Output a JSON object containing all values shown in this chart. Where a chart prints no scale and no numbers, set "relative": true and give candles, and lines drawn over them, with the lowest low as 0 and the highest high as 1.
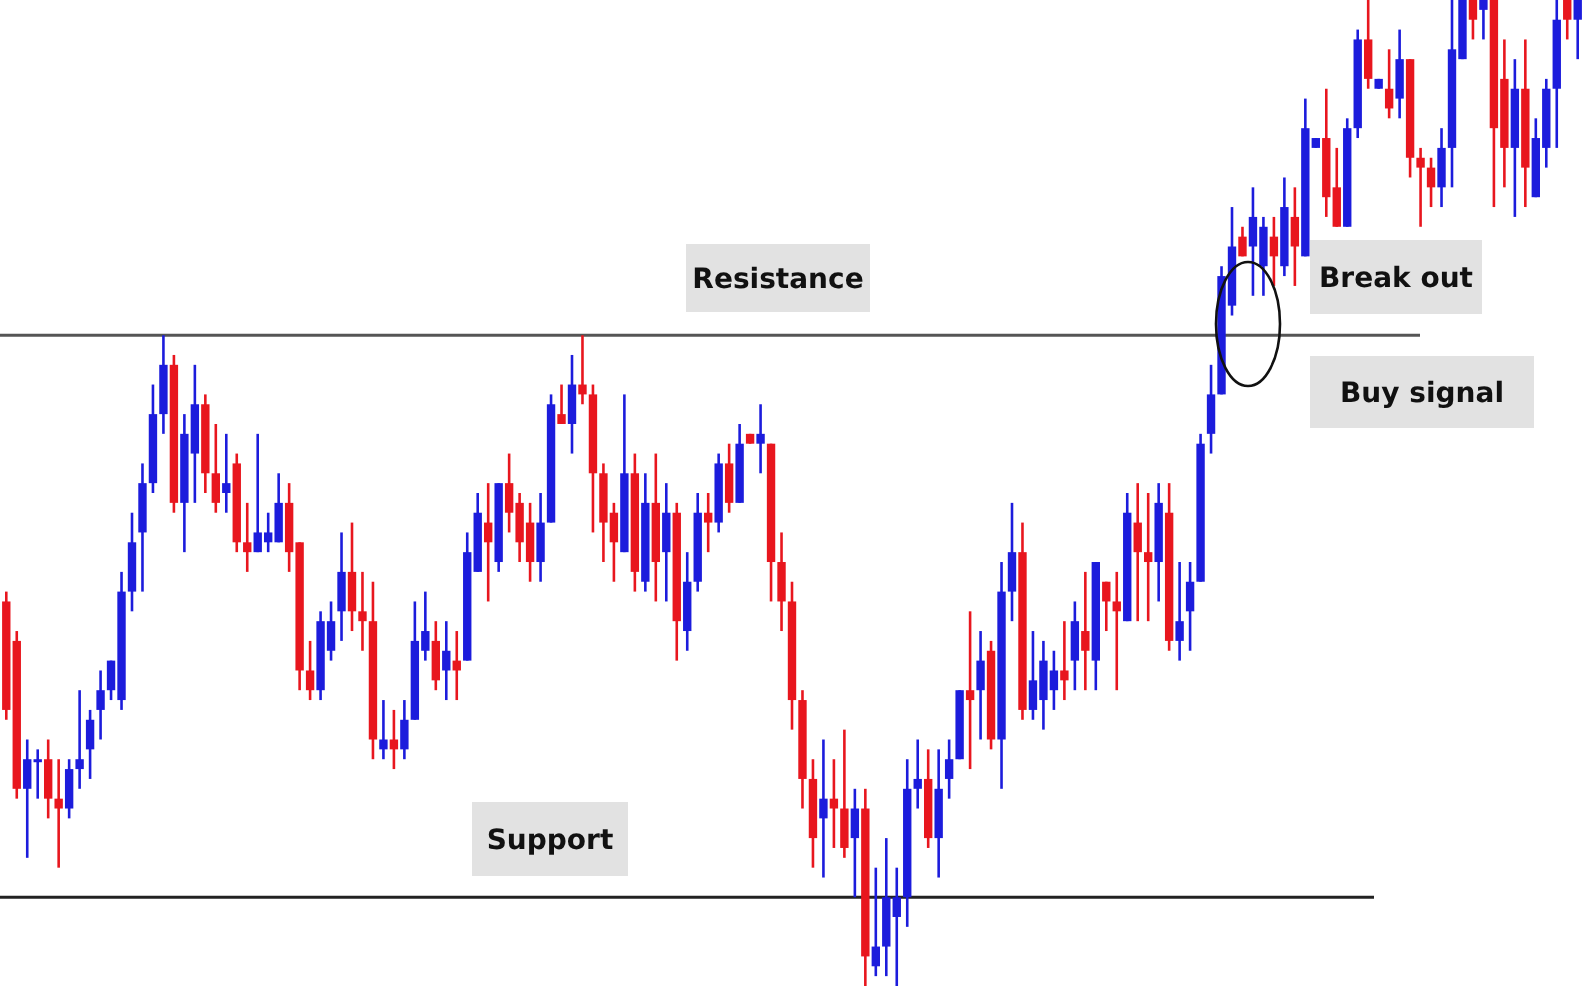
{
  "chart_data": {
    "type": "candlestick",
    "relative": true,
    "colors": [
      "#e8161e",
      "#e8161e",
      "#1c1cdc",
      "#1c1cdc",
      "#e8161e",
      "#e8161e",
      "#1c1cdc",
      "#1c1cdc",
      "#1c1cdc",
      "#1c1cdc",
      "#1c1cdc",
      "#1c1cdc",
      "#1c1cdc",
      "#1c1cdc",
      "#1c1cdc",
      "#1c1cdc",
      "#e8161e",
      "#1c1cdc",
      "#1c1cdc",
      "#e8161e",
      "#e8161e",
      "#1c1cdc",
      "#e8161e",
      "#e8161e",
      "#1c1cdc",
      "#1c1cdc",
      "#1c1cdc",
      "#e8161e",
      "#e8161e",
      "#e8161e",
      "#1c1cdc",
      "#1c1cdc",
      "#1c1cdc",
      "#e8161e",
      "#e8161e",
      "#e8161e",
      "#1c1cdc",
      "#e8161e",
      "#1c1cdc",
      "#1c1cdc",
      "#1c1cdc",
      "#e8161e",
      "#1c1cdc",
      "#e8161e",
      "#1c1cdc",
      "#1c1cdc",
      "#e8161e",
      "#1c1cdc",
      "#e8161e",
      "#e8161e",
      "#e8161e",
      "#1c1cdc",
      "#1c1cdc",
      "#e8161e",
      "#1c1cdc",
      "#e8161e",
      "#e8161e",
      "#e8161e",
      "#e8161e",
      "#1c1cdc",
      "#e8161e",
      "#1c1cdc",
      "#e8161e",
      "#1c1cdc",
      "#e8161e",
      "#1c1cdc",
      "#1c1cdc",
      "#e8161e",
      "#1c1cdc",
      "#e8161e",
      "#1c1cdc",
      "#e8161e",
      "#1c1cdc",
      "#e8161e",
      "#e8161e",
      "#e8161e",
      "#e8161e",
      "#e8161e",
      "#1c1cdc",
      "#e8161e",
      "#e8161e",
      "#1c1cdc",
      "#e8161e",
      "#1c1cdc",
      "#1c1cdc",
      "#1c1cdc",
      "#1c1cdc",
      "#1c1cdc",
      "#e8161e",
      "#1c1cdc",
      "#1c1cdc",
      "#1c1cdc",
      "#e8161e",
      "#1c1cdc",
      "#e8161e",
      "#1c1cdc",
      "#1c1cdc",
      "#e8161e",
      "#1c1cdc",
      "#1c1cdc",
      "#1c1cdc",
      "#e8161e",
      "#1c1cdc",
      "#e8161e",
      "#1c1cdc",
      "#e8161e",
      "#e8161e",
      "#1c1cdc",
      "#e8161e",
      "#e8161e",
      "#1c1cdc",
      "#e8161e",
      "#1c1cdc",
      "#1c1cdc",
      "#1c1cdc",
      "#1c1cdc",
      "#1c1cdc",
      "#1c1cdc",
      "#e8161e",
      "#1c1cdc",
      "#1c1cdc",
      "#e8161e",
      "#1c1cdc",
      "#e8161e",
      "#1c1cdc",
      "#1c1cdc",
      "#e8161e",
      "#e8161e",
      "#1c1cdc",
      "#1c1cdc",
      "#e8161e",
      "#1c1cdc",
      "#e8161e",
      "#1c1cdc",
      "#e8161e",
      "#e8161e",
      "#e8161e",
      "#1c1cdc",
      "#1c1cdc",
      "#1c1cdc",
      "#e8161e",
      "#1c1cdc",
      "#e8161e",
      "#e8161e",
      "#1c1cdc",
      "#e8161e",
      "#1c1cdc",
      "#1c1cdc",
      "#1c1cdc",
      "#e8161e",
      "#1c1cdc"
    ],
    "categories": [
      null,
      null,
      null,
      null,
      null,
      null,
      null,
      null,
      null,
      null,
      null,
      null,
      null,
      null,
      null,
      null,
      null,
      null,
      null,
      null,
      null,
      null,
      null,
      null,
      null,
      null,
      null,
      null,
      null,
      null,
      null,
      null,
      null,
      null,
      null,
      null,
      null,
      null,
      null,
      null,
      null,
      null,
      null,
      null,
      null,
      null,
      null,
      null,
      null,
      null,
      null,
      null,
      null,
      null,
      null,
      null,
      null,
      null,
      null,
      null,
      null,
      null,
      null,
      null,
      null,
      null,
      null,
      null,
      null,
      null,
      null,
      null,
      null,
      null,
      null,
      null,
      null,
      null,
      null,
      null,
      null,
      null,
      null,
      null,
      null,
      null,
      null,
      null,
      null,
      null,
      null,
      null,
      null,
      null,
      null,
      null,
      null,
      null,
      null,
      null,
      null,
      null,
      null,
      null,
      null,
      null,
      null,
      null,
      null,
      null,
      null,
      null,
      null,
      null,
      null,
      null,
      null,
      null,
      null,
      null,
      null,
      null,
      null,
      null,
      null,
      null,
      null,
      null,
      null,
      null,
      null,
      null,
      null,
      null,
      null,
      null,
      null,
      null,
      null,
      null,
      null,
      null,
      null,
      null,
      null,
      null,
      null,
      null,
      null,
      null,
      null
    ],
    "ohlc": [
      [
        0.39,
        0.4,
        0.27,
        0.28
      ],
      [
        0.35,
        0.36,
        0.19,
        0.2
      ],
      [
        0.2,
        0.25,
        0.13,
        0.23
      ],
      [
        0.23,
        0.24,
        0.19,
        0.23
      ],
      [
        0.23,
        0.25,
        0.17,
        0.19
      ],
      [
        0.19,
        0.23,
        0.12,
        0.18
      ],
      [
        0.18,
        0.23,
        0.17,
        0.22
      ],
      [
        0.22,
        0.3,
        0.2,
        0.23
      ],
      [
        0.24,
        0.28,
        0.21,
        0.27
      ],
      [
        0.28,
        0.32,
        0.25,
        0.3
      ],
      [
        0.3,
        0.33,
        0.29,
        0.33
      ],
      [
        0.29,
        0.42,
        0.28,
        0.4
      ],
      [
        0.4,
        0.48,
        0.38,
        0.45
      ],
      [
        0.46,
        0.53,
        0.4,
        0.51
      ],
      [
        0.51,
        0.61,
        0.5,
        0.58
      ],
      [
        0.58,
        0.66,
        0.56,
        0.63
      ],
      [
        0.63,
        0.64,
        0.48,
        0.49
      ],
      [
        0.49,
        0.58,
        0.44,
        0.56
      ],
      [
        0.54,
        0.63,
        0.49,
        0.59
      ],
      [
        0.59,
        0.6,
        0.5,
        0.52
      ],
      [
        0.52,
        0.57,
        0.48,
        0.49
      ],
      [
        0.5,
        0.56,
        0.48,
        0.51
      ],
      [
        0.53,
        0.54,
        0.44,
        0.45
      ],
      [
        0.45,
        0.49,
        0.42,
        0.44
      ],
      [
        0.44,
        0.56,
        0.44,
        0.46
      ],
      [
        0.45,
        0.48,
        0.44,
        0.46
      ],
      [
        0.45,
        0.52,
        0.45,
        0.49
      ],
      [
        0.49,
        0.51,
        0.42,
        0.44
      ],
      [
        0.45,
        0.45,
        0.3,
        0.32
      ],
      [
        0.32,
        0.35,
        0.29,
        0.3
      ],
      [
        0.3,
        0.38,
        0.29,
        0.37
      ],
      [
        0.34,
        0.39,
        0.33,
        0.37
      ],
      [
        0.38,
        0.46,
        0.35,
        0.42
      ],
      [
        0.42,
        0.47,
        0.36,
        0.38
      ],
      [
        0.38,
        0.42,
        0.34,
        0.37
      ],
      [
        0.37,
        0.41,
        0.23,
        0.25
      ],
      [
        0.24,
        0.29,
        0.23,
        0.25
      ],
      [
        0.25,
        0.28,
        0.22,
        0.24
      ],
      [
        0.24,
        0.29,
        0.23,
        0.27
      ],
      [
        0.27,
        0.39,
        0.27,
        0.35
      ],
      [
        0.34,
        0.4,
        0.33,
        0.36
      ],
      [
        0.35,
        0.37,
        0.3,
        0.31
      ],
      [
        0.32,
        0.37,
        0.29,
        0.34
      ],
      [
        0.33,
        0.36,
        0.29,
        0.32
      ],
      [
        0.33,
        0.46,
        0.33,
        0.44
      ],
      [
        0.42,
        0.5,
        0.42,
        0.48
      ],
      [
        0.47,
        0.51,
        0.39,
        0.45
      ],
      [
        0.43,
        0.51,
        0.42,
        0.51
      ],
      [
        0.51,
        0.54,
        0.46,
        0.48
      ],
      [
        0.49,
        0.5,
        0.43,
        0.45
      ],
      [
        0.47,
        0.49,
        0.41,
        0.43
      ],
      [
        0.43,
        0.5,
        0.41,
        0.47
      ],
      [
        0.47,
        0.6,
        0.47,
        0.59
      ],
      [
        0.58,
        0.61,
        0.57,
        0.57
      ],
      [
        0.57,
        0.64,
        0.54,
        0.61
      ],
      [
        0.61,
        0.66,
        0.59,
        0.6
      ],
      [
        0.6,
        0.61,
        0.46,
        0.52
      ],
      [
        0.52,
        0.53,
        0.43,
        0.47
      ],
      [
        0.48,
        0.49,
        0.41,
        0.45
      ],
      [
        0.44,
        0.6,
        0.44,
        0.52
      ],
      [
        0.52,
        0.54,
        0.4,
        0.42
      ],
      [
        0.41,
        0.52,
        0.4,
        0.49
      ],
      [
        0.49,
        0.54,
        0.39,
        0.43
      ],
      [
        0.44,
        0.51,
        0.39,
        0.48
      ],
      [
        0.48,
        0.49,
        0.33,
        0.37
      ],
      [
        0.36,
        0.44,
        0.34,
        0.41
      ],
      [
        0.41,
        0.5,
        0.4,
        0.48
      ],
      [
        0.48,
        0.5,
        0.44,
        0.47
      ],
      [
        0.47,
        0.54,
        0.46,
        0.53
      ],
      [
        0.53,
        0.55,
        0.48,
        0.49
      ],
      [
        0.49,
        0.57,
        0.49,
        0.55
      ],
      [
        0.56,
        0.56,
        0.55,
        0.55
      ],
      [
        0.55,
        0.59,
        0.52,
        0.56
      ],
      [
        0.55,
        0.55,
        0.39,
        0.43
      ],
      [
        0.43,
        0.46,
        0.36,
        0.39
      ],
      [
        0.39,
        0.41,
        0.26,
        0.29
      ],
      [
        0.29,
        0.3,
        0.18,
        0.21
      ],
      [
        0.21,
        0.23,
        0.12,
        0.15
      ],
      [
        0.17,
        0.25,
        0.11,
        0.19
      ],
      [
        0.19,
        0.23,
        0.14,
        0.18
      ],
      [
        0.18,
        0.26,
        0.13,
        0.14
      ],
      [
        0.15,
        0.2,
        0.09,
        0.18
      ],
      [
        0.18,
        0.2,
        0.0,
        0.03
      ],
      [
        0.02,
        0.12,
        0.01,
        0.04
      ],
      [
        0.04,
        0.15,
        0.01,
        0.09
      ],
      [
        0.07,
        0.12,
        0.0,
        0.09
      ],
      [
        0.09,
        0.23,
        0.06,
        0.2
      ],
      [
        0.2,
        0.25,
        0.18,
        0.21
      ],
      [
        0.21,
        0.24,
        0.14,
        0.15
      ],
      [
        0.15,
        0.24,
        0.11,
        0.2
      ],
      [
        0.21,
        0.25,
        0.19,
        0.23
      ],
      [
        0.23,
        0.3,
        0.23,
        0.3
      ],
      [
        0.3,
        0.38,
        0.22,
        0.29
      ],
      [
        0.3,
        0.36,
        0.25,
        0.33
      ],
      [
        0.34,
        0.35,
        0.24,
        0.25
      ],
      [
        0.25,
        0.43,
        0.2,
        0.4
      ],
      [
        0.4,
        0.49,
        0.37,
        0.44
      ],
      [
        0.44,
        0.47,
        0.27,
        0.28
      ],
      [
        0.28,
        0.36,
        0.27,
        0.31
      ],
      [
        0.29,
        0.35,
        0.26,
        0.33
      ],
      [
        0.3,
        0.34,
        0.28,
        0.32
      ],
      [
        0.32,
        0.37,
        0.29,
        0.31
      ],
      [
        0.33,
        0.39,
        0.3,
        0.37
      ],
      [
        0.36,
        0.42,
        0.3,
        0.34
      ],
      [
        0.33,
        0.43,
        0.3,
        0.43
      ],
      [
        0.41,
        0.41,
        0.36,
        0.39
      ],
      [
        0.39,
        0.42,
        0.3,
        0.38
      ],
      [
        0.37,
        0.5,
        0.37,
        0.48
      ],
      [
        0.47,
        0.51,
        0.37,
        0.44
      ],
      [
        0.44,
        0.5,
        0.37,
        0.43
      ],
      [
        0.43,
        0.51,
        0.39,
        0.49
      ],
      [
        0.48,
        0.51,
        0.34,
        0.35
      ],
      [
        0.35,
        0.43,
        0.33,
        0.37
      ],
      [
        0.38,
        0.43,
        0.34,
        0.41
      ],
      [
        0.41,
        0.56,
        0.41,
        0.55
      ],
      [
        0.56,
        0.63,
        0.54,
        0.6
      ],
      [
        0.6,
        0.73,
        0.6,
        0.72
      ],
      [
        0.69,
        0.79,
        0.68,
        0.75
      ],
      [
        0.76,
        0.77,
        0.74,
        0.74
      ],
      [
        0.75,
        0.81,
        0.7,
        0.78
      ],
      [
        0.73,
        0.78,
        0.7,
        0.77
      ],
      [
        0.76,
        0.78,
        0.71,
        0.74
      ],
      [
        0.73,
        0.82,
        0.72,
        0.79
      ],
      [
        0.78,
        0.81,
        0.71,
        0.75
      ],
      [
        0.74,
        0.9,
        0.74,
        0.87
      ],
      [
        0.85,
        0.86,
        0.85,
        0.86
      ],
      [
        0.86,
        0.91,
        0.78,
        0.8
      ],
      [
        0.81,
        0.85,
        0.77,
        0.77
      ],
      [
        0.77,
        0.88,
        0.77,
        0.87
      ],
      [
        0.87,
        0.97,
        0.86,
        0.96
      ],
      [
        0.96,
        1,
        0.91,
        0.92
      ],
      [
        0.91,
        0.92,
        0.91,
        0.92
      ],
      [
        0.91,
        0.95,
        0.88,
        0.89
      ],
      [
        0.9,
        0.97,
        0.88,
        0.94
      ],
      [
        0.94,
        0.94,
        0.82,
        0.84
      ],
      [
        0.84,
        0.85,
        0.77,
        0.83
      ],
      [
        0.83,
        0.84,
        0.79,
        0.81
      ],
      [
        0.81,
        0.87,
        0.79,
        0.85
      ],
      [
        0.85,
        1,
        0.81,
        0.95
      ],
      [
        0.94,
        1,
        0.94,
        1
      ],
      [
        1,
        1,
        0.96,
        0.98
      ],
      [
        0.99,
        1,
        0.96,
        1
      ],
      [
        1,
        1,
        0.79,
        0.87
      ],
      [
        0.92,
        0.96,
        0.81,
        0.85
      ],
      [
        0.85,
        0.94,
        0.78,
        0.91
      ],
      [
        0.91,
        0.96,
        0.79,
        0.83
      ],
      [
        0.8,
        0.88,
        0.8,
        0.86
      ],
      [
        0.85,
        0.92,
        0.83,
        0.91
      ],
      [
        0.91,
        1,
        0.85,
        0.98
      ],
      [
        1,
        1,
        0.96,
        0.98
      ],
      [
        0.98,
        1,
        0.94,
        1
      ]
    ],
    "ref_lines": [
      {
        "axis": "y",
        "value": 0.66,
        "label": "Resistance",
        "color": "#555555"
      },
      {
        "axis": "y",
        "value": 0.09,
        "label": "Support",
        "color": "#222222"
      }
    ],
    "annotations": [
      "Break out",
      "Buy signal"
    ]
  }
}
